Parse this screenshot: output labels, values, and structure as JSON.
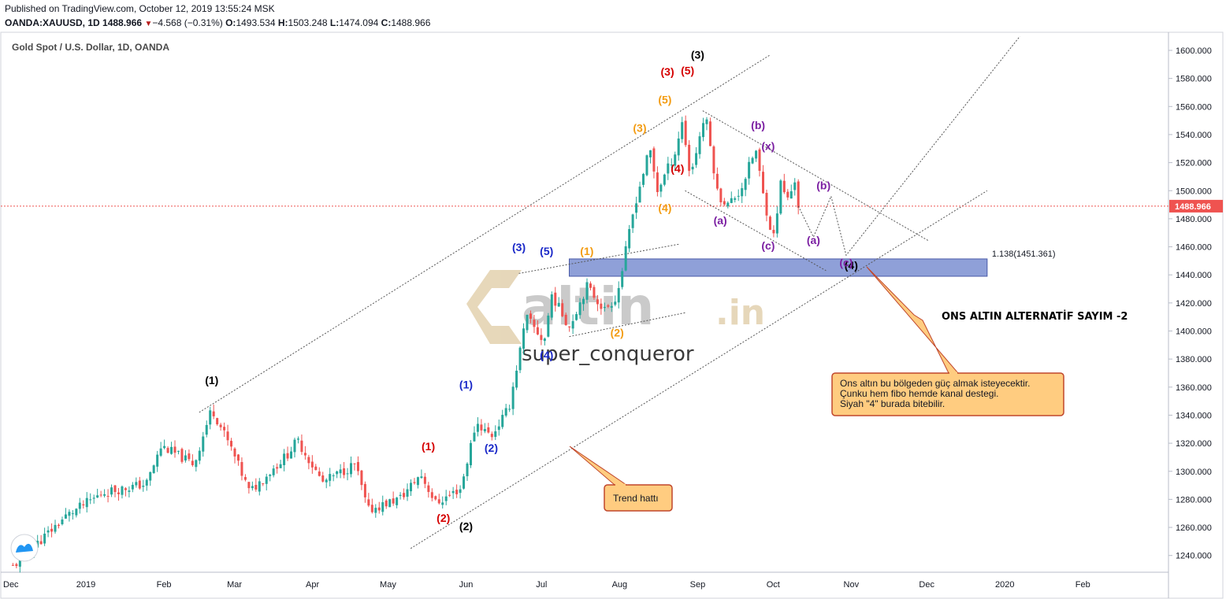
{
  "header": {
    "published": "Published on TradingView.com, October 12, 2019 13:55:24 MSK",
    "symbol": "OANDA:XAUUSD, 1D",
    "last": "1488.966",
    "change": "−4.568 (−0.31%)",
    "o_label": "O:",
    "o": "1493.534",
    "h_label": "H:",
    "h": "1503.248",
    "l_label": "L:",
    "l": "1474.094",
    "c_label": "C:",
    "c": "1488.966"
  },
  "pane_title": "Gold Spot / U.S. Dollar, 1D, OANDA",
  "price_label": "1488.966",
  "fib_label": "1.138(1451.361)",
  "headline": "ONS ALTIN ALTERNATİF SAYIM -2",
  "watermark": {
    "brand": "altin",
    "suffix": ".in",
    "author": "super_conqueror"
  },
  "callouts": {
    "main": [
      "Ons altın bu bölgeden güç almak isteyecektir.",
      "Çunku hem fibo hemde kanal destegi.",
      "Siyah \"4\" burada bitebilir."
    ],
    "trend": "Trend hattı"
  },
  "colors": {
    "bull": "#26a69a",
    "bear": "#ef5350",
    "zone": "#7b8fd1",
    "callout": "#ffcc80",
    "callout_border": "#c0462b"
  },
  "chart_data": {
    "type": "candlestick",
    "title": "Gold Spot / U.S. Dollar, 1D, OANDA",
    "ylim": [
      1230,
      1610
    ],
    "y_ticks": [
      "1600.000",
      "1580.000",
      "1560.000",
      "1540.000",
      "1520.000",
      "1500.000",
      "1480.000",
      "1460.000",
      "1440.000",
      "1420.000",
      "1400.000",
      "1380.000",
      "1360.000",
      "1340.000",
      "1320.000",
      "1300.000",
      "1280.000",
      "1260.000",
      "1240.000"
    ],
    "x_ticks": [
      "Dec",
      "2019",
      "Feb",
      "Mar",
      "Apr",
      "May",
      "Jun",
      "Jul",
      "Aug",
      "Sep",
      "Oct",
      "Nov",
      "Dec",
      "2020",
      "Feb"
    ],
    "close_path": [
      {
        "date": "2018-12-03",
        "close": 1232
      },
      {
        "date": "2018-12-24",
        "close": 1268
      },
      {
        "date": "2019-01-08",
        "close": 1285
      },
      {
        "date": "2019-01-25",
        "close": 1291
      },
      {
        "date": "2019-01-31",
        "close": 1318
      },
      {
        "date": "2019-02-13",
        "close": 1305
      },
      {
        "date": "2019-02-20",
        "close": 1345
      },
      {
        "date": "2019-02-28",
        "close": 1315
      },
      {
        "date": "2019-03-07",
        "close": 1285
      },
      {
        "date": "2019-03-22",
        "close": 1312
      },
      {
        "date": "2019-03-26",
        "close": 1322
      },
      {
        "date": "2019-04-05",
        "close": 1292
      },
      {
        "date": "2019-04-18",
        "close": 1305
      },
      {
        "date": "2019-04-23",
        "close": 1272
      },
      {
        "date": "2019-05-06",
        "close": 1281
      },
      {
        "date": "2019-05-14",
        "close": 1298
      },
      {
        "date": "2019-05-20",
        "close": 1277
      },
      {
        "date": "2019-05-30",
        "close": 1288
      },
      {
        "date": "2019-06-05",
        "close": 1335
      },
      {
        "date": "2019-06-11",
        "close": 1325
      },
      {
        "date": "2019-06-18",
        "close": 1345
      },
      {
        "date": "2019-06-25",
        "close": 1410
      },
      {
        "date": "2019-07-02",
        "close": 1392
      },
      {
        "date": "2019-07-05",
        "close": 1426
      },
      {
        "date": "2019-07-12",
        "close": 1403
      },
      {
        "date": "2019-07-19",
        "close": 1432
      },
      {
        "date": "2019-07-26",
        "close": 1415
      },
      {
        "date": "2019-07-31",
        "close": 1425
      },
      {
        "date": "2019-08-07",
        "close": 1490
      },
      {
        "date": "2019-08-13",
        "close": 1530
      },
      {
        "date": "2019-08-16",
        "close": 1500
      },
      {
        "date": "2019-08-23",
        "close": 1527
      },
      {
        "date": "2019-08-26",
        "close": 1550
      },
      {
        "date": "2019-08-29",
        "close": 1510
      },
      {
        "date": "2019-09-04",
        "close": 1555
      },
      {
        "date": "2019-09-09",
        "close": 1497
      },
      {
        "date": "2019-09-13",
        "close": 1490
      },
      {
        "date": "2019-09-18",
        "close": 1500
      },
      {
        "date": "2019-09-24",
        "close": 1530
      },
      {
        "date": "2019-09-27",
        "close": 1497
      },
      {
        "date": "2019-10-01",
        "close": 1465
      },
      {
        "date": "2019-10-04",
        "close": 1505
      },
      {
        "date": "2019-10-07",
        "close": 1493
      },
      {
        "date": "2019-10-10",
        "close": 1510
      },
      {
        "date": "2019-10-11",
        "close": 1489
      }
    ],
    "last_price": 1488.966,
    "fib_zone": {
      "level": "1.138",
      "price": 1451.361,
      "low": 1439
    },
    "wave_labels": [
      {
        "text": "(1)",
        "color": "#000000",
        "date": "2019-02-20",
        "price": 1362
      },
      {
        "text": "(2)",
        "color": "#000000",
        "date": "2019-06-01",
        "price": 1258
      },
      {
        "text": "(3)",
        "color": "#000000",
        "date": "2019-09-01",
        "price": 1594
      },
      {
        "text": "(4)",
        "color": "#000000",
        "date": "2019-11-01",
        "price": 1444
      },
      {
        "text": "(1)",
        "color": "#d50000",
        "date": "2019-05-17",
        "price": 1315
      },
      {
        "text": "(2)",
        "color": "#d50000",
        "date": "2019-05-23",
        "price": 1264
      },
      {
        "text": "(3)",
        "color": "#d50000",
        "date": "2019-08-20",
        "price": 1582
      },
      {
        "text": "(5)",
        "color": "#d50000",
        "date": "2019-08-28",
        "price": 1583
      },
      {
        "text": "(4)",
        "color": "#d50000",
        "date": "2019-08-24",
        "price": 1513
      },
      {
        "text": "(1)",
        "color": "#1a28c8",
        "date": "2019-06-01",
        "price": 1359
      },
      {
        "text": "(2)",
        "color": "#1a28c8",
        "date": "2019-06-11",
        "price": 1314
      },
      {
        "text": "(3)",
        "color": "#1a28c8",
        "date": "2019-06-22",
        "price": 1457
      },
      {
        "text": "(5)",
        "color": "#1a28c8",
        "date": "2019-07-03",
        "price": 1454
      },
      {
        "text": "(4)",
        "color": "#1a28c8",
        "date": "2019-07-03",
        "price": 1380
      },
      {
        "text": "(1)",
        "color": "#f39c12",
        "date": "2019-07-19",
        "price": 1454
      },
      {
        "text": "(2)",
        "color": "#f39c12",
        "date": "2019-07-31",
        "price": 1396
      },
      {
        "text": "(3)",
        "color": "#f39c12",
        "date": "2019-08-09",
        "price": 1542
      },
      {
        "text": "(4)",
        "color": "#f39c12",
        "date": "2019-08-19",
        "price": 1485
      },
      {
        "text": "(5)",
        "color": "#f39c12",
        "date": "2019-08-19",
        "price": 1562
      },
      {
        "text": "(a)",
        "color": "#7b1fa2",
        "date": "2019-09-10",
        "price": 1476
      },
      {
        "text": "(b)",
        "color": "#7b1fa2",
        "date": "2019-09-25",
        "price": 1544
      },
      {
        "text": "(x)",
        "color": "#7b1fa2",
        "date": "2019-09-29",
        "price": 1529
      },
      {
        "text": "(c)",
        "color": "#7b1fa2",
        "date": "2019-09-29",
        "price": 1458
      },
      {
        "text": "(b)",
        "color": "#7b1fa2",
        "date": "2019-10-21",
        "price": 1501
      },
      {
        "text": "(a)",
        "color": "#7b1fa2",
        "date": "2019-10-17",
        "price": 1462
      },
      {
        "text": "(c)",
        "color": "#7b1fa2",
        "date": "2019-10-30",
        "price": 1446
      }
    ],
    "projection_path": [
      {
        "date": "2019-10-11",
        "price": 1489
      },
      {
        "date": "2019-10-17",
        "price": 1467
      },
      {
        "date": "2019-10-24",
        "price": 1496
      },
      {
        "date": "2019-10-30",
        "price": 1454
      },
      {
        "date": "2020-01-07",
        "price": 1610
      }
    ],
    "trend_lines": [
      {
        "style": "dotted",
        "points": [
          {
            "date": "2019-02-15",
            "price": 1342
          },
          {
            "date": "2019-09-30",
            "price": 1597
          }
        ]
      },
      {
        "style": "dotted",
        "points": [
          {
            "date": "2019-05-10",
            "price": 1245
          },
          {
            "date": "2019-12-25",
            "price": 1500
          }
        ]
      },
      {
        "style": "dotted",
        "points": [
          {
            "date": "2019-06-22",
            "price": 1441
          },
          {
            "date": "2019-08-25",
            "price": 1462
          }
        ]
      },
      {
        "style": "dotted",
        "points": [
          {
            "date": "2019-07-12",
            "price": 1396
          },
          {
            "date": "2019-08-27",
            "price": 1413
          }
        ]
      },
      {
        "style": "dotted",
        "points": [
          {
            "date": "2019-09-03",
            "price": 1557
          },
          {
            "date": "2019-12-02",
            "price": 1464
          }
        ]
      },
      {
        "style": "dotted",
        "points": [
          {
            "date": "2019-08-27",
            "price": 1500
          },
          {
            "date": "2019-10-22",
            "price": 1443
          }
        ]
      }
    ]
  }
}
